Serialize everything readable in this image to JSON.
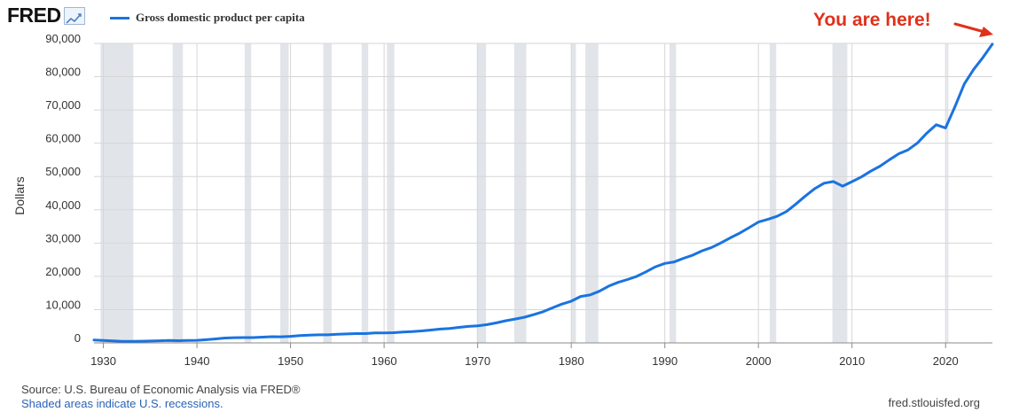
{
  "logo": {
    "text": "FRED"
  },
  "legend": {
    "label": "Gross domestic product per capita"
  },
  "annotation": {
    "text": "You are here!"
  },
  "footer": {
    "source": "Source: U.S. Bureau of Economic Analysis via FRED®",
    "recessions": "Shaded areas indicate U.S. recessions.",
    "site": "fred.stlouisfed.org"
  },
  "colors": {
    "line": "#1a73e0",
    "recession": "#e1e5ea",
    "grid": "#d6d6d6",
    "annotation": "#e0311b"
  },
  "chart_data": {
    "type": "line",
    "title": "",
    "xlabel": "",
    "ylabel": "Dollars",
    "xlim": [
      1929,
      2025
    ],
    "ylim": [
      0,
      90000
    ],
    "y_ticks": [
      0,
      10000,
      20000,
      30000,
      40000,
      50000,
      60000,
      70000,
      80000,
      90000
    ],
    "y_tick_labels": [
      "0",
      "10,000",
      "20,000",
      "30,000",
      "40,000",
      "50,000",
      "60,000",
      "70,000",
      "80,000",
      "90,000"
    ],
    "x_ticks": [
      1930,
      1940,
      1950,
      1960,
      1970,
      1980,
      1990,
      2000,
      2010,
      2020
    ],
    "x_tick_labels": [
      "1930",
      "1940",
      "1950",
      "1960",
      "1970",
      "1980",
      "1990",
      "2000",
      "2010",
      "2020"
    ],
    "grid": true,
    "legend_position": "top-left",
    "recessions": [
      [
        1929.7,
        1933.2
      ],
      [
        1937.4,
        1938.5
      ],
      [
        1945.1,
        1945.8
      ],
      [
        1948.9,
        1949.8
      ],
      [
        1953.5,
        1954.4
      ],
      [
        1957.6,
        1958.3
      ],
      [
        1960.3,
        1961.1
      ],
      [
        1969.9,
        1970.9
      ],
      [
        1973.9,
        1975.2
      ],
      [
        1980.0,
        1980.5
      ],
      [
        1981.5,
        1982.9
      ],
      [
        1990.5,
        1991.2
      ],
      [
        2001.2,
        2001.9
      ],
      [
        2007.9,
        2009.5
      ],
      [
        2020.1,
        2020.3
      ]
    ],
    "series": [
      {
        "name": "Gross domestic product per capita",
        "x": [
          1929,
          1930,
          1931,
          1932,
          1933,
          1934,
          1935,
          1936,
          1937,
          1938,
          1939,
          1940,
          1941,
          1942,
          1943,
          1944,
          1945,
          1946,
          1947,
          1948,
          1949,
          1950,
          1951,
          1952,
          1953,
          1954,
          1955,
          1956,
          1957,
          1958,
          1959,
          1960,
          1961,
          1962,
          1963,
          1964,
          1965,
          1966,
          1967,
          1968,
          1969,
          1970,
          1971,
          1972,
          1973,
          1974,
          1975,
          1976,
          1977,
          1978,
          1979,
          1980,
          1981,
          1982,
          1983,
          1984,
          1985,
          1986,
          1987,
          1988,
          1989,
          1990,
          1991,
          1992,
          1993,
          1994,
          1995,
          1996,
          1997,
          1998,
          1999,
          2000,
          2001,
          2002,
          2003,
          2004,
          2005,
          2006,
          2007,
          2008,
          2009,
          2010,
          2011,
          2012,
          2013,
          2014,
          2015,
          2016,
          2017,
          2018,
          2019,
          2020,
          2021,
          2022,
          2023,
          2024,
          2025
        ],
        "values": [
          850,
          740,
          620,
          470,
          440,
          510,
          570,
          650,
          720,
          670,
          710,
          770,
          950,
          1200,
          1460,
          1580,
          1600,
          1600,
          1720,
          1860,
          1830,
          1980,
          2210,
          2310,
          2420,
          2410,
          2580,
          2680,
          2790,
          2790,
          2970,
          3010,
          3070,
          3270,
          3400,
          3590,
          3860,
          4160,
          4330,
          4650,
          4960,
          5130,
          5490,
          6010,
          6670,
          7170,
          7720,
          8490,
          9370,
          10550,
          11670,
          12550,
          13950,
          14400,
          15520,
          17080,
          18190,
          19040,
          20000,
          21380,
          22860,
          23880,
          24340,
          25420,
          26380,
          27690,
          28690,
          30070,
          31590,
          33000,
          34620,
          36330,
          37130,
          38040,
          39490,
          41720,
          44120,
          46300,
          47980,
          48500,
          47100,
          48470,
          49880,
          51600,
          53120,
          55050,
          56840,
          58020,
          60110,
          63060,
          65550,
          64600,
          71000,
          77800,
          82200,
          85800,
          89800
        ]
      }
    ]
  }
}
